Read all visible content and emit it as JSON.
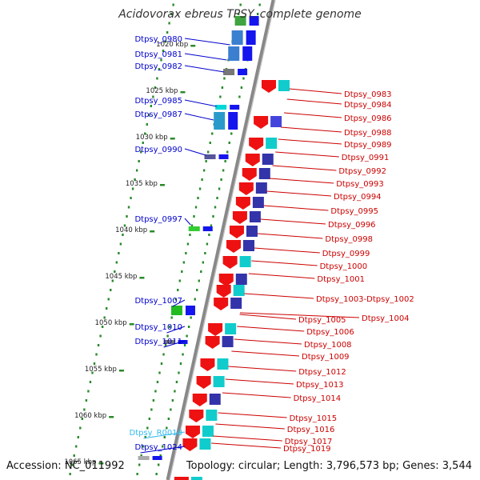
{
  "title": "Acidovorax ebreus TPSY, complete genome",
  "accession": "Accession: NC_011992",
  "summary": "Topology: circular; Length: 3,796,573 bp; Genes: 3,544",
  "colors": {
    "plus_label": "#0000cc",
    "minus_label": "#cc0000",
    "rna_label": "#33bbee",
    "backbone": "#888888",
    "tick": "#2a8a2a"
  },
  "ruler": [
    {
      "label": "1020 kbp"
    },
    {
      "label": "1025 kbp"
    },
    {
      "label": "1030 kbp"
    },
    {
      "label": "1035 kbp"
    },
    {
      "label": "1040 kbp"
    },
    {
      "label": "1045 kbp"
    },
    {
      "label": "1050 kbp"
    },
    {
      "label": "1055 kbp"
    },
    {
      "label": "1060 kbp"
    },
    {
      "label": "1065 kbp"
    }
  ],
  "left_labels": [
    {
      "text": "Dtpsy_0980",
      "kind": "plus"
    },
    {
      "text": "Dtpsy_0981",
      "kind": "plus"
    },
    {
      "text": "Dtpsy_0982",
      "kind": "plus"
    },
    {
      "text": "Dtpsy_0985",
      "kind": "plus"
    },
    {
      "text": "Dtpsy_0987",
      "kind": "plus"
    },
    {
      "text": "Dtpsy_0990",
      "kind": "plus"
    },
    {
      "text": "Dtpsy_0997",
      "kind": "plus"
    },
    {
      "text": "Dtpsy_1007",
      "kind": "plus"
    },
    {
      "text": "Dtpsy_1010",
      "kind": "plus"
    },
    {
      "text": "Dtpsy_1011",
      "kind": "plus"
    },
    {
      "text": "Dtpsy_R0010",
      "kind": "rna"
    },
    {
      "text": "Dtpsy_1024",
      "kind": "plus"
    }
  ],
  "right_labels": [
    "Dtpsy_0983",
    "Dtpsy_0984",
    "Dtpsy_0986",
    "Dtpsy_0988",
    "Dtpsy_0989",
    "Dtpsy_0991",
    "Dtpsy_0992",
    "Dtpsy_0993",
    "Dtpsy_0994",
    "Dtpsy_0995",
    "Dtpsy_0996",
    "Dtpsy_0998",
    "Dtpsy_0999",
    "Dtpsy_1000",
    "Dtpsy_1001",
    "Dtpsy_1003-Dtpsy_1002",
    "Dtpsy_1004",
    "Dtpsy_1005",
    "Dtpsy_1006",
    "Dtpsy_1008",
    "Dtpsy_1009",
    "Dtpsy_1012",
    "Dtpsy_1013",
    "Dtpsy_1014",
    "Dtpsy_1015",
    "Dtpsy_1016",
    "Dtpsy_1017",
    "Dtpsy_1019"
  ]
}
